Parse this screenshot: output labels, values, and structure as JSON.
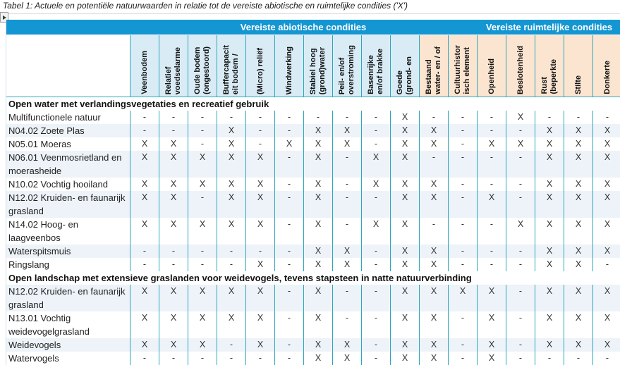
{
  "title": "Tabel 1: Actuele en potentiële natuurwaarden in relatie tot de vereiste abiotische en ruimtelijke condities ('X')",
  "colors": {
    "band_blue": "#1496d2",
    "header_blue": "#d9ecf6",
    "header_peach": "#fbe5d0",
    "grid_teal": "#2ba6bd",
    "row_stripe": "#edf3f8"
  },
  "table": {
    "group_headers": [
      {
        "label": "Vereiste abiotische condities",
        "span": 12
      },
      {
        "label": "Vereiste ruimtelijke condities",
        "span": 5
      }
    ],
    "columns": [
      {
        "lines": [
          "Veenbodem"
        ],
        "header_bg": "blue"
      },
      {
        "lines": [
          "Relatief",
          "voedselarme"
        ],
        "header_bg": "blue"
      },
      {
        "lines": [
          "Oude bodem",
          "(ongestoord)"
        ],
        "header_bg": "blue"
      },
      {
        "lines": [
          "Buffercapacit",
          "eit bodem /"
        ],
        "header_bg": "blue"
      },
      {
        "lines": [
          "(Micro) reliëf"
        ],
        "header_bg": "blue"
      },
      {
        "lines": [
          "Windwerking"
        ],
        "header_bg": "blue"
      },
      {
        "lines": [
          "Stabiel hoog",
          "(grond)water"
        ],
        "header_bg": "blue"
      },
      {
        "lines": [
          "Peil- en/of",
          "overstroming"
        ],
        "header_bg": "blue"
      },
      {
        "lines": [
          "Basenrijke",
          "en/of brakke"
        ],
        "header_bg": "blue"
      },
      {
        "lines": [
          "Goede",
          "(grond- en"
        ],
        "header_bg": "blue"
      },
      {
        "lines": [
          "Bestaand",
          "water- en / of"
        ],
        "header_bg": "peach"
      },
      {
        "lines": [
          "Cultuurhistor",
          "isch element"
        ],
        "header_bg": "peach"
      },
      {
        "lines": [
          "Openheid"
        ],
        "header_bg": "peach"
      },
      {
        "lines": [
          "Beslotenheid"
        ],
        "header_bg": "peach"
      },
      {
        "lines": [
          "Rust",
          "(beperkte"
        ],
        "header_bg": "peach"
      },
      {
        "lines": [
          "Stilte"
        ],
        "header_bg": "peach"
      },
      {
        "lines": [
          "Donkerte"
        ],
        "header_bg": "peach"
      }
    ],
    "sections": [
      {
        "header": "Open water met verlandingsvegetaties en recreatief gebruik",
        "rows": [
          {
            "label": "Multifunctionele natuur",
            "values": [
              "-",
              "-",
              "-",
              "-",
              "-",
              "-",
              "-",
              "-",
              "-",
              "X",
              "-",
              "-",
              "-",
              "X",
              "-",
              "-",
              "-"
            ]
          },
          {
            "label": "N04.02 Zoete Plas",
            "values": [
              "-",
              "-",
              "-",
              "X",
              "-",
              "-",
              "X",
              "X",
              "-",
              "X",
              "X",
              "-",
              "-",
              "-",
              "X",
              "X",
              "X"
            ]
          },
          {
            "label": "N05.01 Moeras",
            "values": [
              "X",
              "X",
              "-",
              "X",
              "-",
              "X",
              "X",
              "X",
              "-",
              "X",
              "X",
              "-",
              "X",
              "X",
              "X",
              "X",
              "X"
            ]
          },
          {
            "label": "N06.01 Veenmosrietland en moerasheide",
            "values": [
              "X",
              "X",
              "X",
              "X",
              "X",
              "-",
              "X",
              "-",
              "X",
              "X",
              "-",
              "-",
              "-",
              "-",
              "X",
              "X",
              "X"
            ]
          },
          {
            "label": "N10.02 Vochtig hooiland",
            "values": [
              "X",
              "X",
              "X",
              "X",
              "X",
              "-",
              "X",
              "-",
              "X",
              "X",
              "X",
              "-",
              "-",
              "-",
              "X",
              "X",
              "X"
            ]
          },
          {
            "label": "N12.02 Kruiden- en faunarijk grasland",
            "values": [
              "X",
              "X",
              "-",
              "X",
              "X",
              "-",
              "X",
              "-",
              "-",
              "X",
              "X",
              "-",
              "X",
              "-",
              "X",
              "X",
              "X"
            ]
          },
          {
            "label": "N14.02 Hoog- en laagveenbos",
            "values": [
              "X",
              "X",
              "X",
              "X",
              "X",
              "-",
              "X",
              "-",
              "X",
              "X",
              "-",
              "-",
              "-",
              "X",
              "X",
              "X",
              "X"
            ]
          },
          {
            "label": "Waterspitsmuis",
            "values": [
              "-",
              "-",
              "-",
              "-",
              "-",
              "-",
              "X",
              "X",
              "-",
              "X",
              "X",
              "-",
              "-",
              "-",
              "X",
              "X",
              "X"
            ]
          },
          {
            "label": "Ringslang",
            "values": [
              "-",
              "-",
              "-",
              "-",
              "X",
              "-",
              "X",
              "X",
              "-",
              "X",
              "X",
              "-",
              "-",
              "-",
              "X",
              "X",
              "-"
            ]
          }
        ]
      },
      {
        "header": "Open landschap met extensieve graslanden voor weidevogels, tevens stapsteen in natte natuurverbinding",
        "rows": [
          {
            "label": "N12.02 Kruiden- en faunarijk grasland",
            "values": [
              "X",
              "X",
              "X",
              "X",
              "X",
              "-",
              "X",
              "-",
              "-",
              "X",
              "X",
              "X",
              "X",
              "-",
              "X",
              "X",
              "X"
            ]
          },
          {
            "label": "N13.01 Vochtig weidevogelgrasland",
            "values": [
              "X",
              "X",
              "X",
              "X",
              "X",
              "-",
              "X",
              "-",
              "-",
              "X",
              "X",
              "-",
              "X",
              "-",
              "X",
              "X",
              "X"
            ]
          },
          {
            "label": "Weidevogels",
            "values": [
              "X",
              "X",
              "X",
              "-",
              "X",
              "-",
              "X",
              "X",
              "-",
              "X",
              "X",
              "-",
              "X",
              "-",
              "X",
              "X",
              "X"
            ]
          },
          {
            "label": "Watervogels",
            "values": [
              "-",
              "-",
              "-",
              "-",
              "-",
              "-",
              "X",
              "X",
              "-",
              "X",
              "X",
              "-",
              "X",
              "-",
              "-",
              "-",
              "-"
            ]
          }
        ]
      }
    ]
  }
}
